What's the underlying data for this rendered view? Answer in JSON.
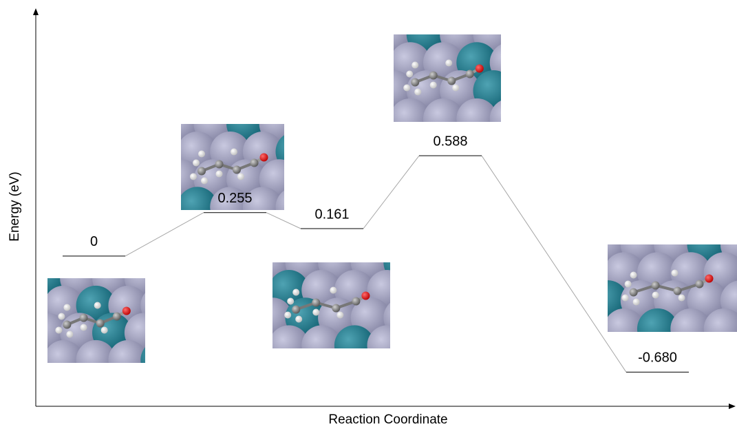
{
  "chart_data": {
    "type": "energy-profile",
    "y_label": "Energy (eV)",
    "x_label": "Reaction Coordinate",
    "values": [
      0,
      0.255,
      0.161,
      0.588,
      -0.68
    ],
    "value_labels": [
      "0",
      "0.255",
      "0.161",
      "0.588",
      "-0.680"
    ],
    "ylim": [
      -0.88,
      1.44
    ],
    "color": "#000000",
    "connector_color": "#a6a6a6"
  }
}
